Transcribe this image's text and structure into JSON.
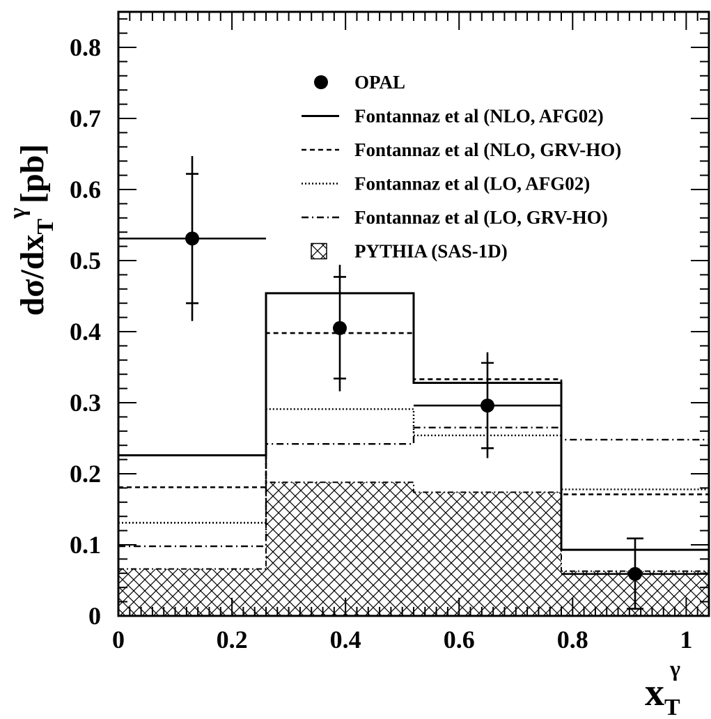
{
  "chart_data": {
    "type": "histogram",
    "ylabel": {
      "main": "dσ/dx",
      "sub": "T",
      "sup": "γ",
      "unit": "[pb]"
    },
    "xlabel": {
      "main": "x",
      "sub": "T",
      "sup": "γ"
    },
    "xlim": [
      0,
      1.04
    ],
    "ylim": [
      0,
      0.85
    ],
    "x_ticks": [
      0,
      0.2,
      0.4,
      0.6,
      0.8,
      1
    ],
    "x_tick_labels": [
      "0",
      "0.2",
      "0.4",
      "0.6",
      "0.8",
      "1"
    ],
    "y_ticks": [
      0,
      0.1,
      0.2,
      0.3,
      0.4,
      0.5,
      0.6,
      0.7,
      0.8
    ],
    "y_tick_labels": [
      "0",
      "0.1",
      "0.2",
      "0.3",
      "0.4",
      "0.5",
      "0.6",
      "0.7",
      "0.8"
    ],
    "bin_edges": [
      0,
      0.26,
      0.52,
      0.78,
      1.04
    ],
    "data_points": {
      "name": "OPAL",
      "x": [
        0.13,
        0.39,
        0.65,
        0.91
      ],
      "y": [
        0.531,
        0.405,
        0.296,
        0.059
      ],
      "xerr": [
        [
          0,
          0.26
        ],
        null,
        [
          0.52,
          0.78
        ],
        [
          0.78,
          1.04
        ]
      ],
      "yerr_stat": [
        [
          0.44,
          0.622
        ],
        [
          0.334,
          0.477
        ],
        [
          0.236,
          0.356
        ],
        null
      ],
      "yerr_total": [
        [
          0.415,
          0.647
        ],
        [
          0.316,
          0.494
        ],
        [
          0.222,
          0.371
        ],
        [
          0.01,
          0.109
        ]
      ]
    },
    "series": [
      {
        "name": "Fontannaz et al (NLO, AFG02)",
        "style": "solid",
        "values": [
          0.226,
          0.454,
          0.328,
          0.093
        ]
      },
      {
        "name": "Fontannaz et al (NLO, GRV-HO)",
        "style": "dashed",
        "values": [
          0.181,
          0.398,
          0.333,
          0.171
        ]
      },
      {
        "name": "Fontannaz et al (LO, AFG02)",
        "style": "dotted",
        "values": [
          0.131,
          0.291,
          0.254,
          0.178
        ]
      },
      {
        "name": "Fontannaz et al (LO, GRV-HO)",
        "style": "dashdot",
        "values": [
          0.098,
          0.242,
          0.265,
          0.248
        ]
      },
      {
        "name": "PYTHIA (SAS-1D)",
        "style": "hatched",
        "values": [
          0.066,
          0.188,
          0.174,
          0.063
        ]
      }
    ],
    "legend_position": "top-right"
  }
}
